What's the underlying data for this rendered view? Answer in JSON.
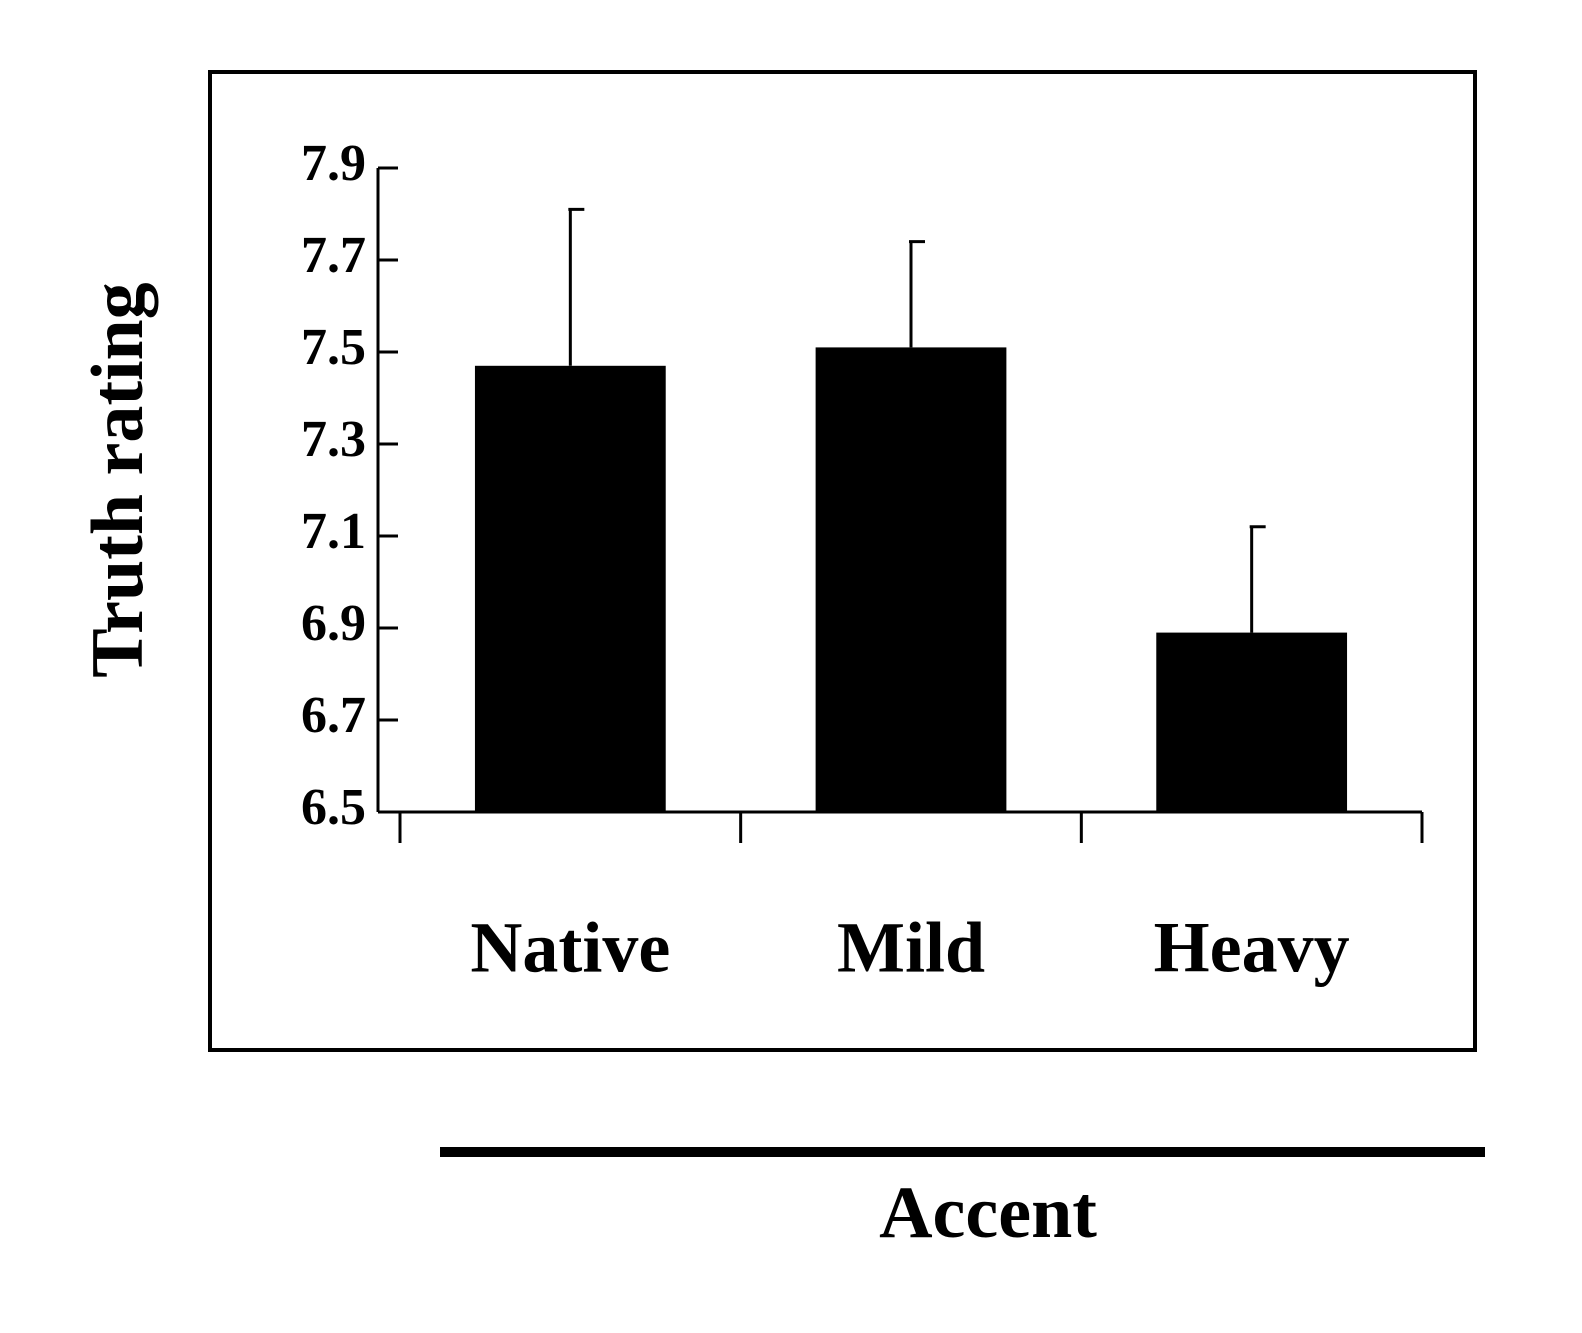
{
  "chart_data": {
    "type": "bar",
    "x_label": "Accent",
    "y_label": "Truth rating",
    "categories": [
      "Native",
      "Mild",
      "Heavy"
    ],
    "values": [
      7.47,
      7.51,
      6.89
    ],
    "errors": [
      0.34,
      0.23,
      0.23
    ],
    "color": "#000000",
    "ylim": [
      6.5,
      7.9
    ],
    "yticks": [
      6.5,
      6.7,
      6.9,
      7.1,
      7.3,
      7.5,
      7.7,
      7.9
    ]
  }
}
